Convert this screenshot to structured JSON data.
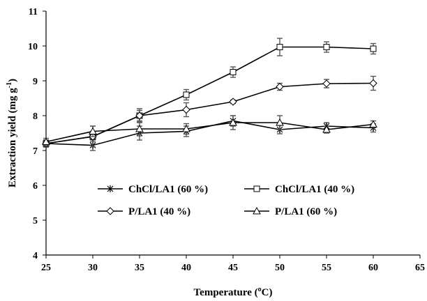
{
  "chart_data": {
    "type": "line",
    "xlabel": "Temperature (",
    "xlabel_sup": "o",
    "xlabel_tail": "C)",
    "ylabel": "Extraction yield (mg g",
    "ylabel_sup": "-1",
    "ylabel_tail": ")",
    "xlim": [
      25,
      65
    ],
    "ylim": [
      4,
      11
    ],
    "x_ticks": [
      "25",
      "30",
      "35",
      "40",
      "45",
      "50",
      "55",
      "60",
      "65"
    ],
    "y_ticks": [
      "4",
      "5",
      "6",
      "7",
      "8",
      "9",
      "10",
      "11"
    ],
    "x": [
      25,
      30,
      35,
      40,
      45,
      50,
      55,
      60
    ],
    "legend_placement": "center",
    "series": [
      {
        "name": "ChCl/LA1 (60 %)",
        "marker": "asterisk",
        "values": [
          7.2,
          7.15,
          7.5,
          7.55,
          7.85,
          7.6,
          7.7,
          7.65
        ],
        "errors": [
          0.1,
          0.15,
          0.2,
          0.15,
          0.15,
          0.12,
          0.1,
          0.12
        ]
      },
      {
        "name": "ChCl/LA1 (40 %)",
        "marker": "square",
        "values": [
          7.2,
          7.4,
          8.0,
          8.6,
          9.25,
          9.97,
          9.97,
          9.92
        ],
        "errors": [
          0.1,
          0.15,
          0.15,
          0.15,
          0.15,
          0.25,
          0.15,
          0.15
        ]
      },
      {
        "name": "P/LA1 (40 %)",
        "marker": "diamond",
        "values": [
          7.2,
          7.4,
          8.0,
          8.17,
          8.4,
          8.83,
          8.92,
          8.93
        ],
        "errors": [
          0.1,
          0.3,
          0.2,
          0.2,
          0.05,
          0.1,
          0.12,
          0.2
        ]
      },
      {
        "name": "P/LA1 (60 %)",
        "marker": "triangle",
        "values": [
          7.25,
          7.55,
          7.62,
          7.62,
          7.8,
          7.8,
          7.6,
          7.75
        ],
        "errors": [
          0.1,
          0.15,
          0.2,
          0.15,
          0.2,
          0.2,
          0.1,
          0.1
        ]
      }
    ],
    "colors": {
      "line": "#000000",
      "error_bar": "#555555"
    }
  }
}
